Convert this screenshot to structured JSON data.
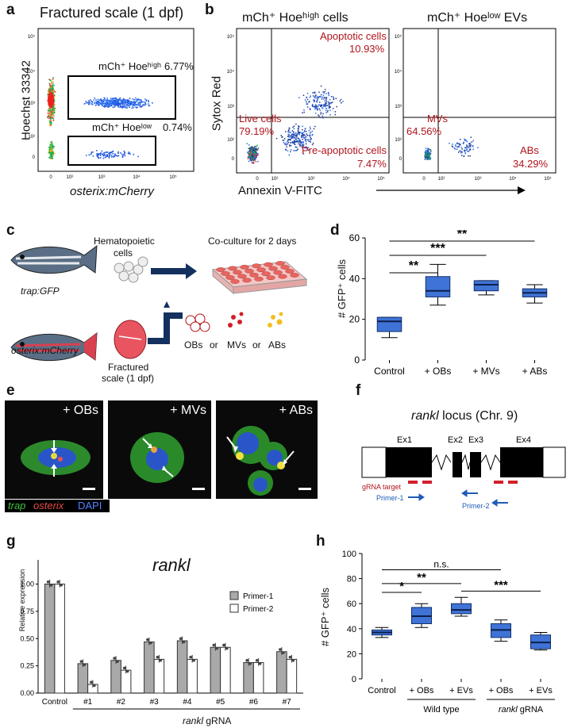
{
  "panel_labels": {
    "a": "a",
    "b": "b",
    "c": "c",
    "d": "d",
    "e": "e",
    "f": "f",
    "g": "g",
    "h": "h"
  },
  "panel_a": {
    "title": "Fractured scale (1 dpf)",
    "ylabel": "Hoechst 33342",
    "xlabel": "osterix:mCherry",
    "gate_high_label": "mCh⁺ Hoeʰⁱᵍʰ",
    "gate_high_pct": "6.77%",
    "gate_low_label": "mCh⁺ Hoeˡᵒʷ",
    "gate_low_pct": "0.74%",
    "yticks": [
      "10⁵",
      "10⁴",
      "10³",
      "10²",
      "0"
    ],
    "xticks": [
      "0",
      "10²",
      "10³",
      "10⁴",
      "10⁵"
    ]
  },
  "panel_b": {
    "left_title": "mCh⁺ Hoeʰⁱᵍʰ cells",
    "right_title": "mCh⁺ Hoeˡᵒʷ EVs",
    "ylabel": "Sytox Red",
    "xlabel": "Annexin V-FITC",
    "apoptotic_label": "Apoptotic cells",
    "apoptotic_pct": "10.93%",
    "live_label": "Live cells",
    "live_pct": "79.19%",
    "preapoptotic_label": "Pre-apoptotic cells",
    "preapoptotic_pct": "7.47%",
    "mvs_label": "MVs",
    "mvs_pct": "64.56%",
    "abs_label": "ABs",
    "abs_pct": "34.29%",
    "yticks": [
      "10⁵",
      "10⁴",
      "10³",
      "10²",
      "0"
    ],
    "xticks": [
      "0",
      "10²",
      "10³",
      "10⁴",
      "10⁵"
    ]
  },
  "panel_c": {
    "fish1_label": "trap:GFP",
    "fish2_label": "osterix:mCherry",
    "hematopoietic_label_1": "Hematopoietic",
    "hematopoietic_label_2": "cells",
    "coculture_label": "Co-culture for 2 days",
    "fractured_label_1": "Fractured",
    "fractured_label_2": "scale (1 dpf)",
    "obs": "OBs",
    "mvs": "MVs",
    "abs": "ABs",
    "or": "or"
  },
  "panel_d": {
    "ylabel": "# GFP⁺ cells",
    "categories": [
      "Control",
      "+ OBs",
      "+ MVs",
      "+ ABs"
    ],
    "yticks": [
      "0",
      "20",
      "40",
      "60"
    ],
    "sig": [
      "**",
      "***",
      "**"
    ]
  },
  "panel_e": {
    "images": [
      "+ OBs",
      "+ MVs",
      "+ ABs"
    ],
    "legend_trap": "trap",
    "legend_osterix": "osterix",
    "legend_dapi": "DAPI"
  },
  "panel_f": {
    "title_italic": "rankl",
    "title_rest": " locus (Chr. 9)",
    "exons": [
      "Ex1",
      "Ex2",
      "Ex3",
      "Ex4"
    ],
    "grna_label": "gRNA target",
    "primer1": "Primer-1",
    "primer2": "Primer-2"
  },
  "panel_g": {
    "title": "rankl",
    "ylabel": "Relative expression",
    "legend": [
      "Primer-1",
      "Primer-2"
    ],
    "categories": [
      "Control",
      "#1",
      "#2",
      "#3",
      "#4",
      "#5",
      "#6",
      "#7"
    ],
    "yticks": [
      "0.00",
      "0.25",
      "0.50",
      "0.75",
      "1.00"
    ],
    "group_label_italic": "rankl",
    "group_label_rest": " gRNA"
  },
  "panel_h": {
    "ylabel": "# GFP⁺ cells",
    "categories": [
      "Control",
      "+ OBs",
      "+ EVs",
      "+ OBs",
      "+ EVs"
    ],
    "yticks": [
      "0",
      "20",
      "40",
      "60",
      "80",
      "100"
    ],
    "sig": [
      "*",
      "**",
      "n.s.",
      "***"
    ],
    "group1": "Wild type",
    "group2_italic": "rankl",
    "group2_rest": " gRNA"
  },
  "chart_data": [
    {
      "type": "box",
      "id": "d",
      "categories": [
        "Control",
        "+ OBs",
        "+ MVs",
        "+ ABs"
      ],
      "ylim": [
        0,
        60
      ],
      "boxes": [
        {
          "min": 11,
          "q1": 14,
          "median": 19,
          "q3": 21,
          "max": 21
        },
        {
          "min": 27,
          "q1": 31,
          "median": 34,
          "q3": 41,
          "max": 47
        },
        {
          "min": 32,
          "q1": 34,
          "median": 37,
          "q3": 39,
          "max": 39
        },
        {
          "min": 28,
          "q1": 31,
          "median": 33,
          "q3": 35,
          "max": 37
        }
      ],
      "color": "#3f73d6"
    },
    {
      "type": "bar",
      "id": "g",
      "categories": [
        "Control",
        "#1",
        "#2",
        "#3",
        "#4",
        "#5",
        "#6",
        "#7"
      ],
      "ylim": [
        0,
        1.12
      ],
      "series": [
        {
          "name": "Primer-1",
          "values": [
            1.0,
            0.27,
            0.3,
            0.47,
            0.48,
            0.42,
            0.28,
            0.38
          ],
          "color": "#a9a9a9"
        },
        {
          "name": "Primer-2",
          "values": [
            1.0,
            0.08,
            0.21,
            0.31,
            0.31,
            0.42,
            0.28,
            0.31
          ],
          "color": "#ffffff"
        }
      ]
    },
    {
      "type": "box",
      "id": "h",
      "categories": [
        "Control",
        "+ OBs",
        "+ EVs",
        "+ OBs",
        "+ EVs"
      ],
      "ylim": [
        0,
        100
      ],
      "boxes": [
        {
          "min": 33,
          "q1": 35,
          "median": 37,
          "q3": 39,
          "max": 41
        },
        {
          "min": 41,
          "q1": 44,
          "median": 50,
          "q3": 57,
          "max": 60
        },
        {
          "min": 50,
          "q1": 52,
          "median": 55,
          "q3": 60,
          "max": 65
        },
        {
          "min": 30,
          "q1": 33,
          "median": 39,
          "q3": 44,
          "max": 47
        },
        {
          "min": 23,
          "q1": 24,
          "median": 29,
          "q3": 35,
          "max": 37
        }
      ],
      "color": "#3f73d6"
    }
  ],
  "colors": {
    "accent_red": "#b0141b",
    "accent_blue": "#1e5bb5",
    "box_blue": "#3f73d6",
    "navy_arrow": "#13305e"
  }
}
